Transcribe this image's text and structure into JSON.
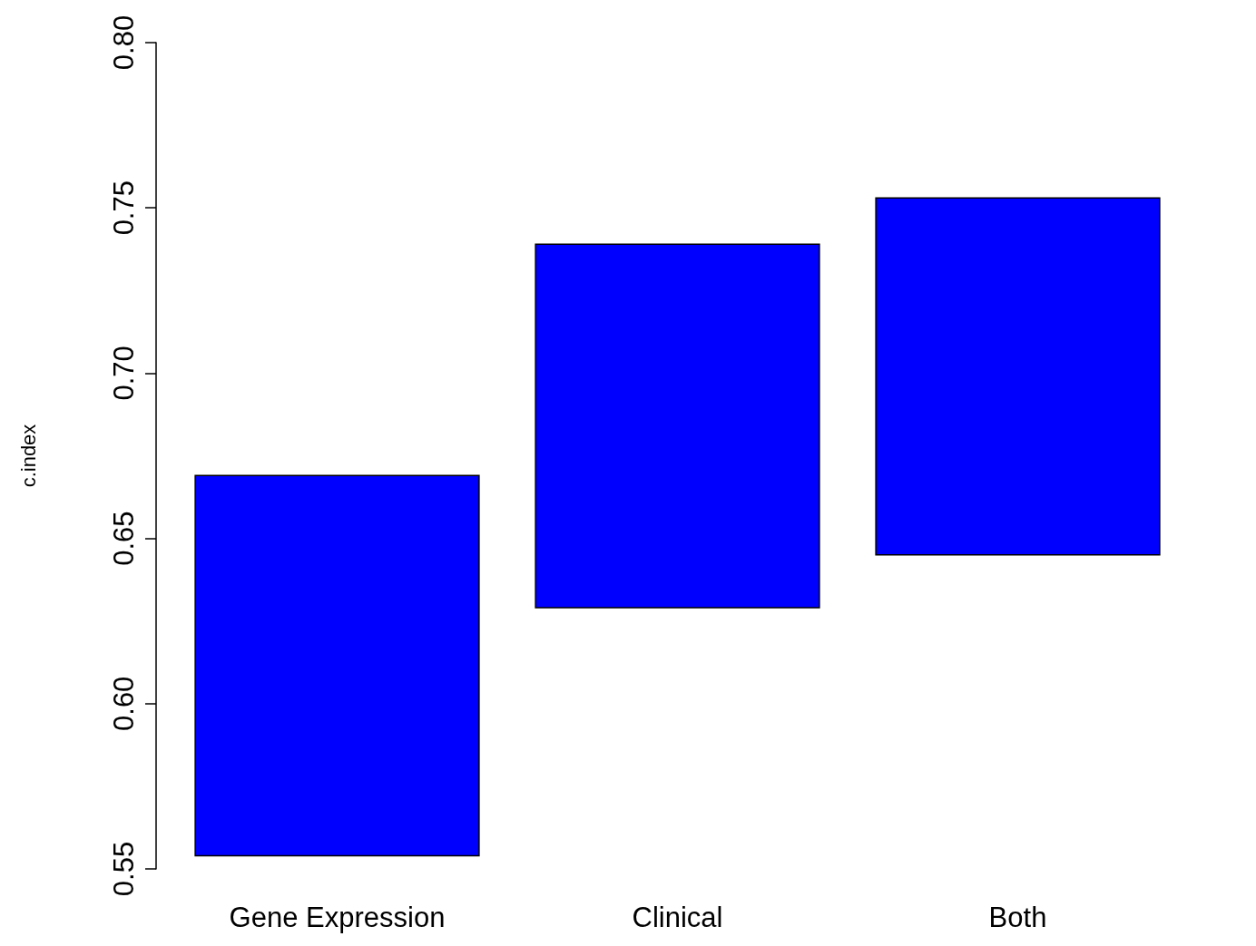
{
  "chart_data": {
    "type": "bar",
    "ylabel": "c.index",
    "categories": [
      "Gene Expression",
      "Clinical",
      "Both"
    ],
    "base": [
      0.554,
      0.629,
      0.645
    ],
    "values": [
      0.115,
      0.11,
      0.108
    ],
    "color": "#0000ff",
    "ylim": [
      0.55,
      0.8
    ],
    "yticks": [
      0.55,
      {
        "value": 0.6,
        "label": "0.60"
      },
      0.65,
      {
        "value": 0.7,
        "label": "0.70"
      },
      0.75,
      {
        "value": 0.8,
        "label": "0.80"
      }
    ],
    "grid": false
  }
}
